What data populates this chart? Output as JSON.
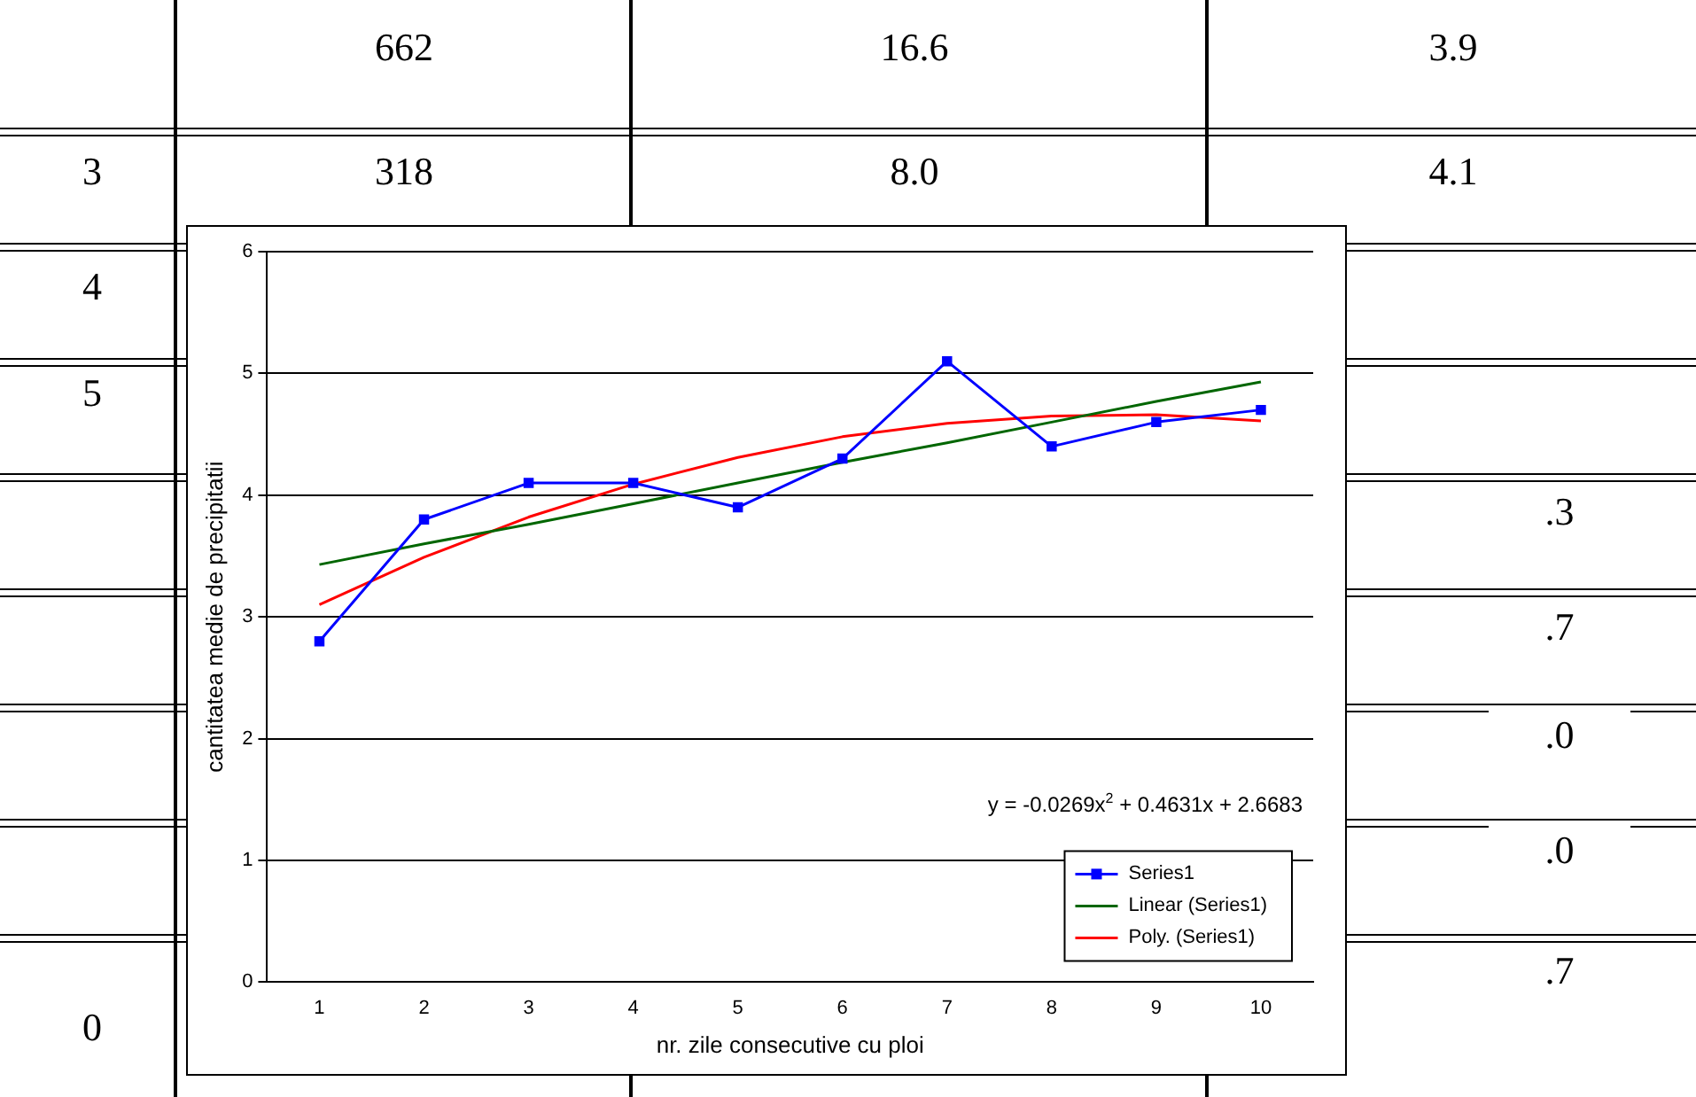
{
  "chart_data": [
    {
      "type": "other",
      "annotations": [
        "662",
        "16.6",
        "3.9",
        "3",
        "318",
        "8.0",
        "4.1",
        "4",
        "5",
        ".3",
        ".7",
        ".0",
        ".0",
        ".7",
        "0"
      ]
    },
    {
      "type": "line",
      "xlabel": "nr. zile consecutive cu ploi",
      "ylabel": "cantitatea medie de precipitatii",
      "categories": [
        "1",
        "2",
        "3",
        "4",
        "5",
        "6",
        "7",
        "8",
        "9",
        "10"
      ],
      "ylim": [
        0,
        6
      ],
      "yticks": [
        0,
        1,
        2,
        3,
        4,
        5,
        6
      ],
      "grid": "y",
      "legend": "bottom right",
      "line_style": "solid",
      "annotations": [
        "y = -0.0269x$^{2}$ + 0.4631x + 2.6683"
      ],
      "series": [
        {
          "name": "Series1",
          "color": "#0000ff",
          "marker": "square",
          "values": [
            2.8,
            3.8,
            4.1,
            4.1,
            3.9,
            4.3,
            5.1,
            4.4,
            4.6,
            4.7
          ]
        },
        {
          "name": "Linear (Series1)",
          "color": "#006600",
          "marker": "none",
          "values": [
            3.43,
            3.6,
            3.76,
            3.93,
            4.1,
            4.27,
            4.43,
            4.6,
            4.77,
            4.93
          ]
        },
        {
          "name": "Poly. (Series1)",
          "color": "#ff0000",
          "marker": "none",
          "values": [
            3.1,
            3.49,
            3.82,
            4.09,
            4.31,
            4.48,
            4.59,
            4.65,
            4.66,
            4.61
          ]
        }
      ]
    }
  ]
}
